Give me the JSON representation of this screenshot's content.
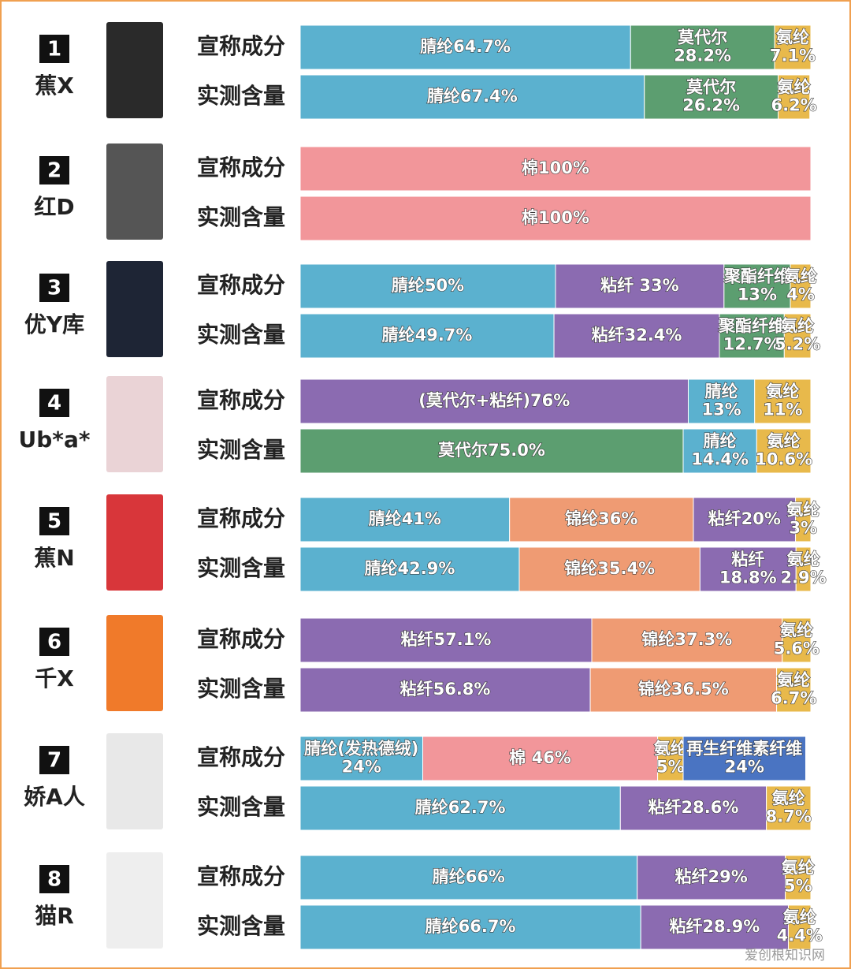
{
  "chart_data": {
    "type": "stacked-bar-100",
    "xlim": [
      0,
      100
    ],
    "watermark": "爱创根知识网",
    "products": [
      {
        "index": "1",
        "name": "蕉X",
        "rows": [
          {
            "label": "宣称成分",
            "segments": [
              {
                "value": 64.7,
                "label": [
                  "腈纶64.7%"
                ],
                "color": "#5bb1cf"
              },
              {
                "value": 28.2,
                "label": [
                  "莫代尔",
                  "28.2%"
                ],
                "color": "#5c9e70"
              },
              {
                "value": 7.1,
                "label": [
                  "氨纶",
                  "7.1%"
                ],
                "color": "#e8b94b"
              }
            ]
          },
          {
            "label": "实测含量",
            "segments": [
              {
                "value": 67.4,
                "label": [
                  "腈纶67.4%"
                ],
                "color": "#5bb1cf"
              },
              {
                "value": 26.2,
                "label": [
                  "莫代尔",
                  "26.2%"
                ],
                "color": "#5c9e70"
              },
              {
                "value": 6.2,
                "label": [
                  "氨纶",
                  "6.2%"
                ],
                "color": "#e8b94b"
              }
            ]
          }
        ]
      },
      {
        "index": "2",
        "name": "红D",
        "rows": [
          {
            "label": "宣称成分",
            "segments": [
              {
                "value": 100,
                "label": [
                  "棉100%"
                ],
                "color": "#f2969a"
              }
            ]
          },
          {
            "label": "实测含量",
            "segments": [
              {
                "value": 100,
                "label": [
                  "棉100%"
                ],
                "color": "#f2969a"
              }
            ]
          }
        ]
      },
      {
        "index": "3",
        "name": "优Y库",
        "rows": [
          {
            "label": "宣称成分",
            "segments": [
              {
                "value": 50,
                "label": [
                  "腈纶50%"
                ],
                "color": "#5bb1cf"
              },
              {
                "value": 33,
                "label": [
                  "粘纤 33%"
                ],
                "color": "#8b6bb1"
              },
              {
                "value": 13,
                "label": [
                  "聚酯纤维",
                  "13%"
                ],
                "color": "#5c9e70"
              },
              {
                "value": 4,
                "label": [
                  "氨纶",
                  "4%"
                ],
                "color": "#e8b94b"
              }
            ]
          },
          {
            "label": "实测含量",
            "segments": [
              {
                "value": 49.7,
                "label": [
                  "腈纶49.7%"
                ],
                "color": "#5bb1cf"
              },
              {
                "value": 32.4,
                "label": [
                  "粘纤32.4%"
                ],
                "color": "#8b6bb1"
              },
              {
                "value": 12.7,
                "label": [
                  "聚酯纤维",
                  "12.7%"
                ],
                "color": "#5c9e70"
              },
              {
                "value": 5.2,
                "label": [
                  "氨纶",
                  "5.2%"
                ],
                "color": "#e8b94b"
              }
            ]
          }
        ]
      },
      {
        "index": "4",
        "name": "Ub*a*",
        "rows": [
          {
            "label": "宣称成分",
            "segments": [
              {
                "value": 76,
                "label": [
                  "(莫代尔+粘纤)76%"
                ],
                "color": "#8b6bb1"
              },
              {
                "value": 13,
                "label": [
                  "腈纶",
                  "13%"
                ],
                "color": "#5bb1cf"
              },
              {
                "value": 11,
                "label": [
                  "氨纶",
                  "11%"
                ],
                "color": "#e8b94b"
              }
            ]
          },
          {
            "label": "实测含量",
            "segments": [
              {
                "value": 75.0,
                "label": [
                  "莫代尔75.0%"
                ],
                "color": "#5c9e70"
              },
              {
                "value": 14.4,
                "label": [
                  "腈纶",
                  "14.4%"
                ],
                "color": "#5bb1cf"
              },
              {
                "value": 10.6,
                "label": [
                  "氨纶",
                  "10.6%"
                ],
                "color": "#e8b94b"
              }
            ]
          }
        ]
      },
      {
        "index": "5",
        "name": "蕉N",
        "rows": [
          {
            "label": "宣称成分",
            "segments": [
              {
                "value": 41,
                "label": [
                  "腈纶41%"
                ],
                "color": "#5bb1cf"
              },
              {
                "value": 36,
                "label": [
                  "锦纶36%"
                ],
                "color": "#ef9b73"
              },
              {
                "value": 20,
                "label": [
                  "粘纤20%"
                ],
                "color": "#8b6bb1"
              },
              {
                "value": 3,
                "label": [
                  "氨纶",
                  "3%"
                ],
                "color": "#e8b94b"
              }
            ]
          },
          {
            "label": "实测含量",
            "segments": [
              {
                "value": 42.9,
                "label": [
                  "腈纶42.9%"
                ],
                "color": "#5bb1cf"
              },
              {
                "value": 35.4,
                "label": [
                  "锦纶35.4%"
                ],
                "color": "#ef9b73"
              },
              {
                "value": 18.8,
                "label": [
                  "粘纤",
                  "18.8%"
                ],
                "color": "#8b6bb1"
              },
              {
                "value": 2.9,
                "label": [
                  "氨纶",
                  "2.9%"
                ],
                "color": "#e8b94b"
              }
            ]
          }
        ]
      },
      {
        "index": "6",
        "name": "千X",
        "rows": [
          {
            "label": "宣称成分",
            "segments": [
              {
                "value": 57.1,
                "label": [
                  "粘纤57.1%"
                ],
                "color": "#8b6bb1"
              },
              {
                "value": 37.3,
                "label": [
                  "锦纶37.3%"
                ],
                "color": "#ef9b73"
              },
              {
                "value": 5.6,
                "label": [
                  "氨纶",
                  "5.6%"
                ],
                "color": "#e8b94b"
              }
            ]
          },
          {
            "label": "实测含量",
            "segments": [
              {
                "value": 56.8,
                "label": [
                  "粘纤56.8%"
                ],
                "color": "#8b6bb1"
              },
              {
                "value": 36.5,
                "label": [
                  "锦纶36.5%"
                ],
                "color": "#ef9b73"
              },
              {
                "value": 6.7,
                "label": [
                  "氨纶",
                  "6.7%"
                ],
                "color": "#e8b94b"
              }
            ]
          }
        ]
      },
      {
        "index": "7",
        "name": "娇A人",
        "rows": [
          {
            "label": "宣称成分",
            "segments": [
              {
                "value": 24,
                "label": [
                  "腈纶(发热德绒)",
                  "24%"
                ],
                "color": "#5bb1cf"
              },
              {
                "value": 46,
                "label": [
                  "棉 46%"
                ],
                "color": "#f2969a"
              },
              {
                "value": 5,
                "label": [
                  "氨纶",
                  "5%"
                ],
                "color": "#e8b94b"
              },
              {
                "value": 24,
                "label": [
                  "再生纤维素纤维",
                  "24%"
                ],
                "color": "#4a74c2"
              }
            ]
          },
          {
            "label": "实测含量",
            "segments": [
              {
                "value": 62.7,
                "label": [
                  "腈纶62.7%"
                ],
                "color": "#5bb1cf"
              },
              {
                "value": 28.6,
                "label": [
                  "粘纤28.6%"
                ],
                "color": "#8b6bb1"
              },
              {
                "value": 8.7,
                "label": [
                  "氨纶",
                  "8.7%"
                ],
                "color": "#e8b94b"
              }
            ]
          }
        ]
      },
      {
        "index": "8",
        "name": "猫R",
        "rows": [
          {
            "label": "宣称成分",
            "segments": [
              {
                "value": 66,
                "label": [
                  "腈纶66%"
                ],
                "color": "#5bb1cf"
              },
              {
                "value": 29,
                "label": [
                  "粘纤29%"
                ],
                "color": "#8b6bb1"
              },
              {
                "value": 5,
                "label": [
                  "氨纶",
                  "5%"
                ],
                "color": "#e8b94b"
              }
            ]
          },
          {
            "label": "实测含量",
            "segments": [
              {
                "value": 66.7,
                "label": [
                  "腈纶66.7%"
                ],
                "color": "#5bb1cf"
              },
              {
                "value": 28.9,
                "label": [
                  "粘纤28.9%"
                ],
                "color": "#8b6bb1"
              },
              {
                "value": 4.4,
                "label": [
                  "氨纶",
                  "4.4%"
                ],
                "color": "#e8b94b"
              }
            ]
          }
        ]
      }
    ]
  }
}
